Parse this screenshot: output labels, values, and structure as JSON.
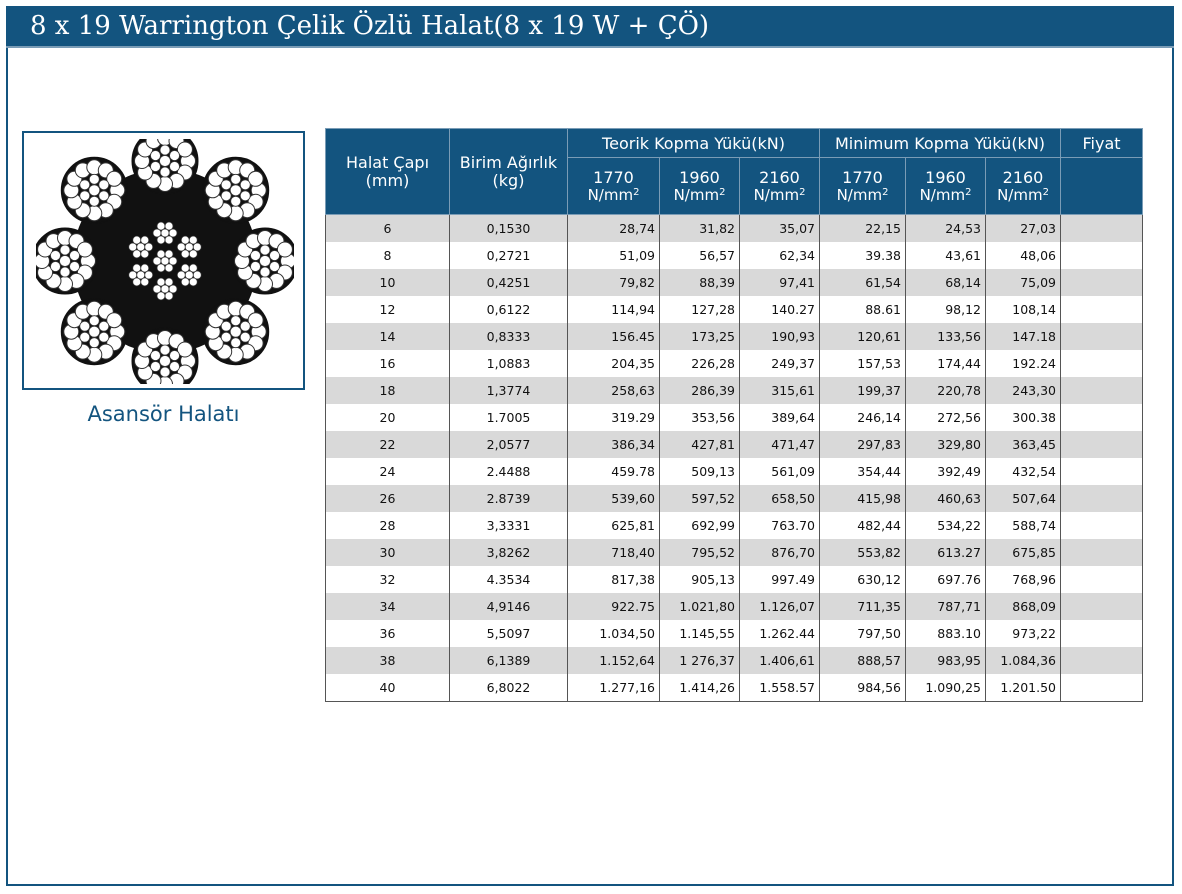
{
  "title": "8 x 19 Warrington Çelik Özlü Halat(8 x 19 W + ÇÖ)",
  "caption": "Asansör Halatı",
  "image": {
    "icon": "wire-rope-cross-section"
  },
  "table": {
    "col_diameter": "Halat Çapı",
    "col_diameter_unit": "(mm)",
    "col_weight": "Birim Ağırlık",
    "col_weight_unit": "(kg)",
    "group_theoretical": "Teorik Kopma Yükü(kN)",
    "group_minimum": "Minimum Kopma Yükü(kN)",
    "col_price": "Fiyat",
    "grades": [
      "1770",
      "1960",
      "2160",
      "1770",
      "1960",
      "2160"
    ],
    "grade_unit": "N/mm",
    "grade_unit_exp": "2",
    "rows": [
      [
        "6",
        "0,1530",
        "28,74",
        "31,82",
        "35,07",
        "22,15",
        "24,53",
        "27,03",
        ""
      ],
      [
        "8",
        "0,2721",
        "51,09",
        "56,57",
        "62,34",
        "39.38",
        "43,61",
        "48,06",
        ""
      ],
      [
        "10",
        "0,4251",
        "79,82",
        "88,39",
        "97,41",
        "61,54",
        "68,14",
        "75,09",
        ""
      ],
      [
        "12",
        "0,6122",
        "114,94",
        "127,28",
        "140.27",
        "88.61",
        "98,12",
        "108,14",
        ""
      ],
      [
        "14",
        "0,8333",
        "156.45",
        "173,25",
        "190,93",
        "120,61",
        "133,56",
        "147.18",
        ""
      ],
      [
        "16",
        "1,0883",
        "204,35",
        "226,28",
        "249,37",
        "157,53",
        "174,44",
        "192.24",
        ""
      ],
      [
        "18",
        "1,3774",
        "258,63",
        "286,39",
        "315,61",
        "199,37",
        "220,78",
        "243,30",
        ""
      ],
      [
        "20",
        "1.7005",
        "319.29",
        "353,56",
        "389,64",
        "246,14",
        "272,56",
        "300.38",
        ""
      ],
      [
        "22",
        "2,0577",
        "386,34",
        "427,81",
        "471,47",
        "297,83",
        "329,80",
        "363,45",
        ""
      ],
      [
        "24",
        "2.4488",
        "459.78",
        "509,13",
        "561,09",
        "354,44",
        "392,49",
        "432,54",
        ""
      ],
      [
        "26",
        "2.8739",
        "539,60",
        "597,52",
        "658,50",
        "415,98",
        "460,63",
        "507,64",
        ""
      ],
      [
        "28",
        "3,3331",
        "625,81",
        "692,99",
        "763.70",
        "482,44",
        "534,22",
        "588,74",
        ""
      ],
      [
        "30",
        "3,8262",
        "718,40",
        "795,52",
        "876,70",
        "553,82",
        "613.27",
        "675,85",
        ""
      ],
      [
        "32",
        "4.3534",
        "817,38",
        "905,13",
        "997.49",
        "630,12",
        "697.76",
        "768,96",
        ""
      ],
      [
        "34",
        "4,9146",
        "922.75",
        "1.021,80",
        "1.126,07",
        "711,35",
        "787,71",
        "868,09",
        ""
      ],
      [
        "36",
        "5,5097",
        "1.034,50",
        "1.145,55",
        "1.262.44",
        "797,50",
        "883.10",
        "973,22",
        ""
      ],
      [
        "38",
        "6,1389",
        "1.152,64",
        "1 276,37",
        "1.406,61",
        "888,57",
        "983,95",
        "1.084,36",
        ""
      ],
      [
        "40",
        "6,8022",
        "1.277,16",
        "1.414,26",
        "1.558.57",
        "984,56",
        "1.090,25",
        "1.201.50",
        ""
      ]
    ]
  }
}
